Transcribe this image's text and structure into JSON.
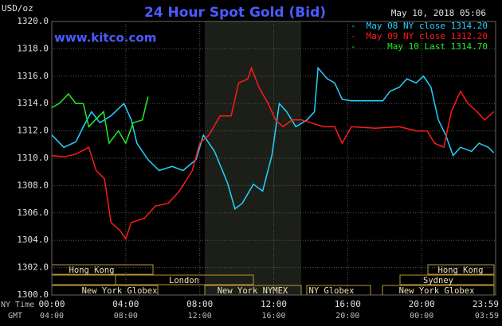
{
  "chart_data": {
    "type": "line",
    "title": "24 Hour Spot Gold (Bid)",
    "unit_label": "USD/oz",
    "timestamp": "May 10, 2018 05:06",
    "site": "www.kitco.com",
    "x_axis_label": "NY Time",
    "x2_axis_label": "GMT",
    "xlim": [
      0,
      24
    ],
    "xticks": [
      {
        "value": 0,
        "label": "00:00"
      },
      {
        "value": 4,
        "label": "04:00"
      },
      {
        "value": 8,
        "label": "08:00"
      },
      {
        "value": 12,
        "label": "12:00"
      },
      {
        "value": 16,
        "label": "16:00"
      },
      {
        "value": 20,
        "label": "20:00"
      },
      {
        "value": 23.98,
        "label": "23:59"
      }
    ],
    "x2tick_labels": [
      "04:00",
      "08:00",
      "12:00",
      "16:00",
      "20:00",
      "00:00",
      "03:59"
    ],
    "ylim": [
      1300,
      1320
    ],
    "yticks": [
      {
        "value": 1300,
        "label": "1300.0"
      },
      {
        "value": 1302,
        "label": "1302.0"
      },
      {
        "value": 1304,
        "label": "1304.0"
      },
      {
        "value": 1306,
        "label": "1306.0"
      },
      {
        "value": 1308,
        "label": "1308.0"
      },
      {
        "value": 1310,
        "label": "1310.0"
      },
      {
        "value": 1312,
        "label": "1312.0"
      },
      {
        "value": 1314,
        "label": "1314.0"
      },
      {
        "value": 1316,
        "label": "1316.0"
      },
      {
        "value": 1318,
        "label": "1318.0"
      },
      {
        "value": 1320,
        "label": "1320.0"
      }
    ],
    "grid": true,
    "legend": "top-right",
    "series": [
      {
        "name": "May 08 NY close 1314.20",
        "color": "#22d3ff",
        "x": [
          0,
          0.65,
          1.3,
          1.7,
          2.15,
          2.6,
          3.2,
          3.9,
          4.3,
          4.6,
          5.2,
          5.8,
          6.5,
          7.1,
          7.8,
          8.2,
          8.8,
          9.5,
          9.9,
          10.3,
          10.9,
          11.4,
          11.9,
          12.3,
          12.7,
          13.2,
          13.8,
          14.2,
          14.4,
          14.9,
          15.3,
          15.7,
          16.2,
          17.9,
          18.3,
          18.8,
          19.2,
          19.7,
          20.1,
          20.5,
          20.9,
          21.3,
          21.7,
          22.1,
          22.7,
          23.1,
          23.6,
          23.9
        ],
        "values": [
          1311.7,
          1310.8,
          1311.2,
          1312.3,
          1313.4,
          1312.6,
          1313.1,
          1314.0,
          1312.8,
          1311.1,
          1309.9,
          1309.1,
          1309.4,
          1309.1,
          1309.9,
          1311.7,
          1310.5,
          1308.2,
          1306.3,
          1306.7,
          1308.1,
          1307.6,
          1310.2,
          1314.0,
          1313.4,
          1312.3,
          1312.8,
          1313.4,
          1316.6,
          1315.8,
          1315.5,
          1314.3,
          1314.2,
          1314.2,
          1314.9,
          1315.2,
          1315.8,
          1315.5,
          1316.0,
          1315.2,
          1312.8,
          1311.7,
          1310.2,
          1310.8,
          1310.5,
          1311.1,
          1310.8,
          1310.4
        ]
      },
      {
        "name": "May 09 NY close 1312.20",
        "color": "#ff1a1a",
        "x": [
          0,
          0.65,
          1.3,
          2.0,
          2.4,
          2.85,
          3.2,
          3.7,
          4.0,
          4.3,
          5.0,
          5.6,
          6.3,
          6.9,
          7.6,
          8.0,
          8.5,
          9.1,
          9.7,
          10.1,
          10.6,
          10.8,
          11.2,
          11.7,
          12.1,
          12.5,
          13.0,
          13.5,
          14.0,
          14.7,
          15.3,
          15.7,
          16.2,
          17.5,
          18.8,
          19.7,
          20.3,
          20.7,
          21.2,
          21.6,
          22.1,
          22.5,
          23.0,
          23.4,
          23.9
        ],
        "values": [
          1310.2,
          1310.1,
          1310.3,
          1310.8,
          1309.1,
          1308.5,
          1305.3,
          1304.7,
          1304.1,
          1305.3,
          1305.6,
          1306.5,
          1306.7,
          1307.6,
          1309.1,
          1311.1,
          1311.7,
          1313.1,
          1313.1,
          1315.5,
          1315.8,
          1316.6,
          1315.2,
          1314.0,
          1312.8,
          1312.3,
          1312.8,
          1312.8,
          1312.6,
          1312.3,
          1312.3,
          1311.1,
          1312.3,
          1312.2,
          1312.3,
          1312.0,
          1312.0,
          1311.1,
          1310.8,
          1313.4,
          1314.9,
          1314.0,
          1313.4,
          1312.8,
          1313.4
        ]
      },
      {
        "name": "May 10 Last 1314.70",
        "color": "#22ee22",
        "x": [
          0,
          0.4,
          0.9,
          1.3,
          1.7,
          2.0,
          2.35,
          2.8,
          3.1,
          3.6,
          4.0,
          4.4,
          4.9,
          5.2
        ],
        "values": [
          1313.7,
          1314.0,
          1314.7,
          1314.0,
          1314.0,
          1312.3,
          1312.8,
          1313.4,
          1311.1,
          1312.0,
          1311.1,
          1312.6,
          1312.8,
          1314.5
        ]
      }
    ],
    "sessions": [
      "Hong Kong",
      "Hong Kong",
      "London",
      "Sydney",
      "New York Globex",
      "New York NYMEX",
      "NY Globex",
      "New York Globex"
    ]
  }
}
